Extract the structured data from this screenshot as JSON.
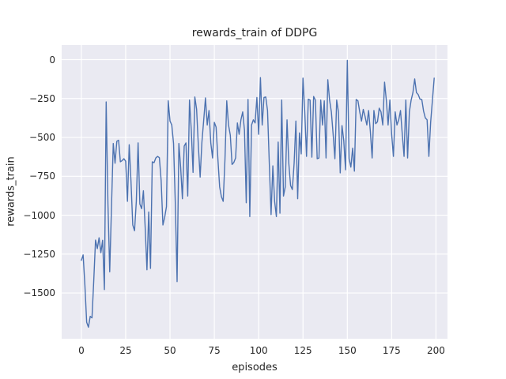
{
  "chart_data": {
    "type": "line",
    "title": "rewards_train of DDPG",
    "xlabel": "episodes",
    "ylabel": "rewards_train",
    "grid": true,
    "legend_position": "none",
    "plot_background": "#EAEAF2",
    "gridline_color": "#FFFFFF",
    "text_color": "#262626",
    "x_ticks": [
      0,
      25,
      50,
      75,
      100,
      125,
      150,
      175,
      200
    ],
    "y_ticks": [
      0,
      -250,
      -500,
      -750,
      -1000,
      -1250,
      -1500
    ],
    "xlim": [
      -11.1,
      206.5
    ],
    "ylim": [
      -1794,
      94
    ],
    "series": [
      {
        "name": "rewards_train",
        "color": "#4C72B0",
        "x_start": 0,
        "x_step": 1,
        "values": [
          -1290,
          -1255,
          -1450,
          -1688,
          -1720,
          -1650,
          -1660,
          -1420,
          -1160,
          -1215,
          -1145,
          -1241,
          -1161,
          -1478,
          -272,
          -928,
          -1364,
          -945,
          -539,
          -666,
          -525,
          -518,
          -657,
          -649,
          -637,
          -653,
          -911,
          -547,
          -784,
          -1063,
          -1100,
          -911,
          -535,
          -928,
          -958,
          -843,
          -1080,
          -1351,
          -979,
          -1342,
          -657,
          -662,
          -632,
          -622,
          -630,
          -776,
          -1063,
          -1013,
          -945,
          -265,
          -395,
          -420,
          -539,
          -928,
          -1427,
          -539,
          -691,
          -894,
          -556,
          -535,
          -877,
          -260,
          -454,
          -725,
          -240,
          -319,
          -556,
          -755,
          -530,
          -390,
          -246,
          -420,
          -327,
          -535,
          -632,
          -403,
          -434,
          -637,
          -818,
          -881,
          -911,
          -640,
          -265,
          -420,
          -485,
          -674,
          -661,
          -632,
          -407,
          -480,
          -387,
          -336,
          -454,
          -920,
          -256,
          -1009,
          -420,
          -387,
          -407,
          -243,
          -480,
          -116,
          -420,
          -243,
          -240,
          -327,
          -666,
          -996,
          -683,
          -911,
          -1009,
          -530,
          -987,
          -260,
          -877,
          -818,
          -387,
          -666,
          -809,
          -835,
          -666,
          -395,
          -894,
          -471,
          -606,
          -119,
          -336,
          -622,
          -254,
          -260,
          -627,
          -237,
          -260,
          -637,
          -632,
          -260,
          -420,
          -265,
          -632,
          -129,
          -260,
          -336,
          -480,
          -637,
          -260,
          -336,
          -728,
          -424,
          -522,
          -708,
          -5,
          -637,
          -691,
          -569,
          -717,
          -256,
          -265,
          -336,
          -395,
          -320,
          -365,
          -420,
          -327,
          -462,
          -632,
          -327,
          -412,
          -400,
          -312,
          -336,
          -420,
          -145,
          -260,
          -420,
          -260,
          -480,
          -622,
          -336,
          -420,
          -387,
          -327,
          -480,
          -622,
          -260,
          -632,
          -336,
          -260,
          -212,
          -124,
          -212,
          -225,
          -254,
          -256,
          -330,
          -375,
          -387,
          -622,
          -403,
          -260,
          -119
        ]
      }
    ]
  }
}
